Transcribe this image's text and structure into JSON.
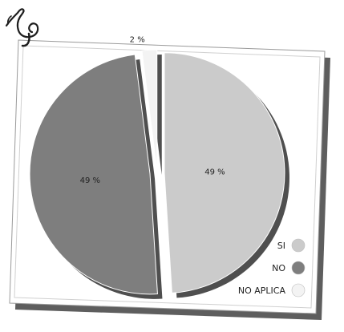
{
  "chart_data": {
    "type": "pie",
    "title": "",
    "slices": [
      {
        "label": "SI",
        "value": 49,
        "display": "49 %",
        "color": "#cbcbcb"
      },
      {
        "label": "NO",
        "value": 49,
        "display": "49 %",
        "color": "#7e7e7e"
      },
      {
        "label": "NO APLICA",
        "value": 2,
        "display": "2 %",
        "color": "#f3f3f3"
      }
    ],
    "legend_position": "bottom-right",
    "exploded": true,
    "style": "3d-shadowed card with tilted frame"
  }
}
